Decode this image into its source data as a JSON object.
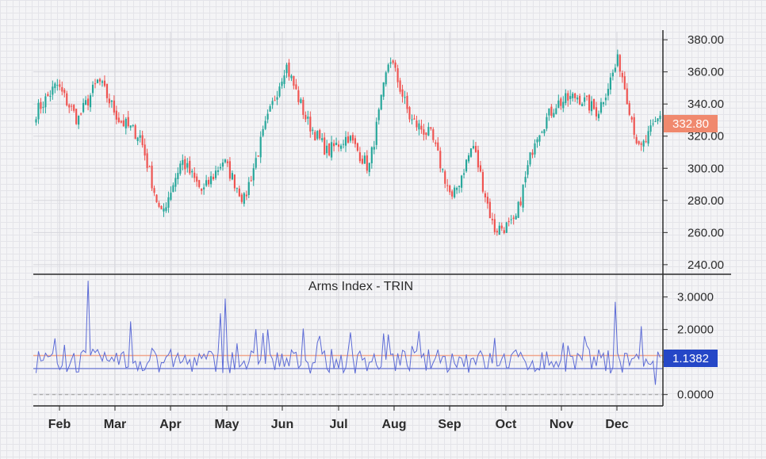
{
  "chart_data": [
    {
      "type": "candlestick",
      "title": "",
      "x_axis": {
        "tick_labels": [
          "Feb",
          "Mar",
          "Apr",
          "May",
          "Jun",
          "Jul",
          "Aug",
          "Sep",
          "Oct",
          "Nov",
          "Dec"
        ]
      },
      "y_axis": {
        "range": [
          235,
          385
        ],
        "tick_labels": [
          "240.00",
          "260.00",
          "280.00",
          "300.00",
          "320.00",
          "340.00",
          "360.00",
          "380.00"
        ],
        "tick_values": [
          240,
          260,
          280,
          300,
          320,
          340,
          360,
          380
        ]
      },
      "last_price": 332.8,
      "last_price_label": "332.80",
      "colors": {
        "up": "#26a69a",
        "down": "#ef5350",
        "last_price_tag": "#f0896e"
      },
      "monthly_anchors": [
        {
          "month": "Jan",
          "close": 335
        },
        {
          "month": "Feb",
          "close": 352
        },
        {
          "month": "Feb",
          "close": 330
        },
        {
          "month": "Mar",
          "close": 355
        },
        {
          "month": "Mar",
          "close": 330
        },
        {
          "month": "Mar",
          "close": 320
        },
        {
          "month": "Apr",
          "close": 270
        },
        {
          "month": "Apr",
          "close": 305
        },
        {
          "month": "May",
          "close": 285
        },
        {
          "month": "May",
          "close": 305
        },
        {
          "month": "Jun",
          "close": 280
        },
        {
          "month": "Jun",
          "close": 325
        },
        {
          "month": "Jun",
          "close": 365
        },
        {
          "month": "Jul",
          "close": 330
        },
        {
          "month": "Jul",
          "close": 310
        },
        {
          "month": "Jul",
          "close": 320
        },
        {
          "month": "Aug",
          "close": 300
        },
        {
          "month": "Aug",
          "close": 370
        },
        {
          "month": "Aug",
          "close": 330
        },
        {
          "month": "Sep",
          "close": 320
        },
        {
          "month": "Sep",
          "close": 280
        },
        {
          "month": "Oct",
          "close": 315
        },
        {
          "month": "Oct",
          "close": 262
        },
        {
          "month": "Oct",
          "close": 265
        },
        {
          "month": "Nov",
          "close": 320
        },
        {
          "month": "Nov",
          "close": 340
        },
        {
          "month": "Nov",
          "close": 345
        },
        {
          "month": "Dec",
          "close": 335
        },
        {
          "month": "Dec",
          "close": 368
        },
        {
          "month": "Dec",
          "close": 310
        },
        {
          "month": "Dec",
          "close": 333
        }
      ]
    },
    {
      "type": "line",
      "title": "Arms Index - TRIN",
      "y_axis": {
        "range": [
          -0.3,
          3.6
        ],
        "tick_labels": [
          "0.0000",
          "1.0000",
          "2.0000",
          "3.0000"
        ],
        "tick_values": [
          0,
          1,
          2,
          3
        ]
      },
      "last_value": 1.1382,
      "last_value_label": "1.1382",
      "reference_lines": [
        1.2,
        0.8,
        0.0
      ],
      "colors": {
        "line": "#5c6bd6",
        "upper_ref": "#f0a58c",
        "lower_ref": "#7f8bd8",
        "zero_ref": "#999999",
        "last_value_tag": "#2547c7"
      },
      "notable_values": [
        {
          "month": "Feb",
          "value": 3.5
        },
        {
          "month": "Mar",
          "value": 2.25
        },
        {
          "month": "Apr",
          "value": 2.5
        },
        {
          "month": "Apr",
          "value": 2.95
        },
        {
          "month": "Jun",
          "value": 2.0
        },
        {
          "month": "Aug",
          "value": 1.95
        },
        {
          "month": "Dec",
          "value": 2.85
        },
        {
          "month": "Dec",
          "value": 2.1
        },
        {
          "month": "Dec",
          "value": 0.3
        }
      ]
    }
  ]
}
